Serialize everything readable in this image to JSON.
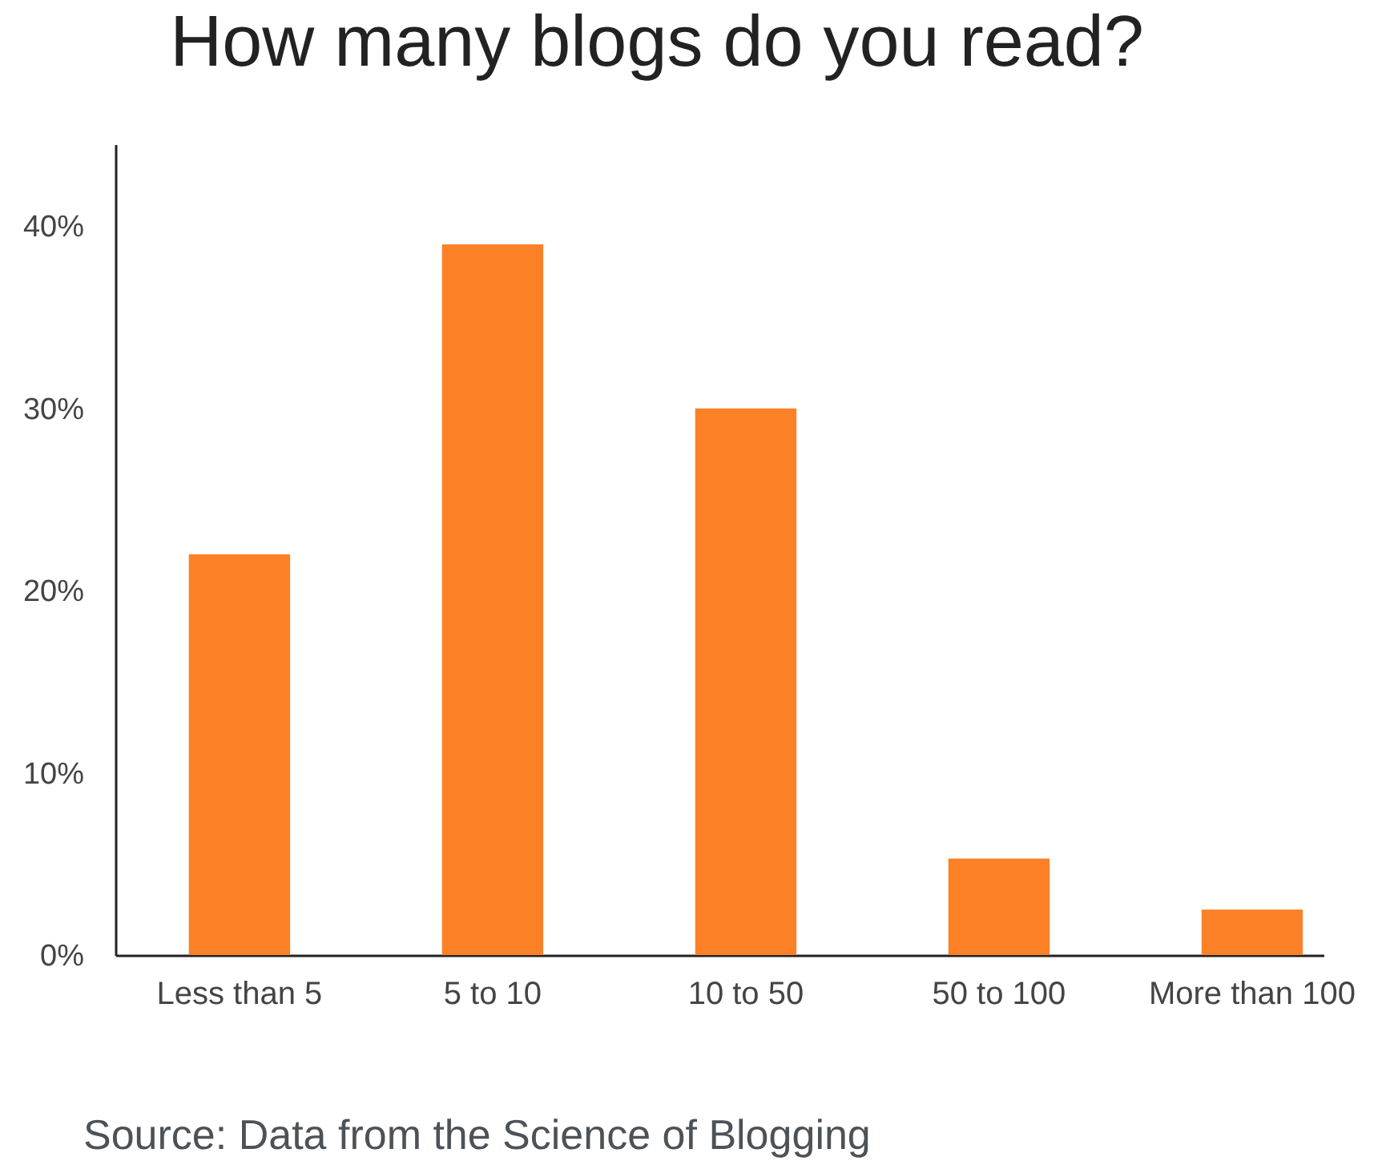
{
  "chart_data": {
    "type": "bar",
    "title": "How many blogs do you read?",
    "categories": [
      "Less than 5",
      "5 to 10",
      "10 to 50",
      "50 to 100",
      "More than 100"
    ],
    "values": [
      22,
      39,
      30,
      5.3,
      2.5
    ],
    "color": "#fc8126",
    "ylim": [
      0,
      44.5
    ],
    "yticks": [
      {
        "value": 0,
        "label": "0%"
      },
      {
        "value": 10,
        "label": "10%"
      },
      {
        "value": 20,
        "label": "20%"
      },
      {
        "value": 30,
        "label": "30%"
      },
      {
        "value": 40,
        "label": "40%"
      }
    ],
    "annotations": [
      "Source: Data from the Science of Blogging"
    ]
  }
}
